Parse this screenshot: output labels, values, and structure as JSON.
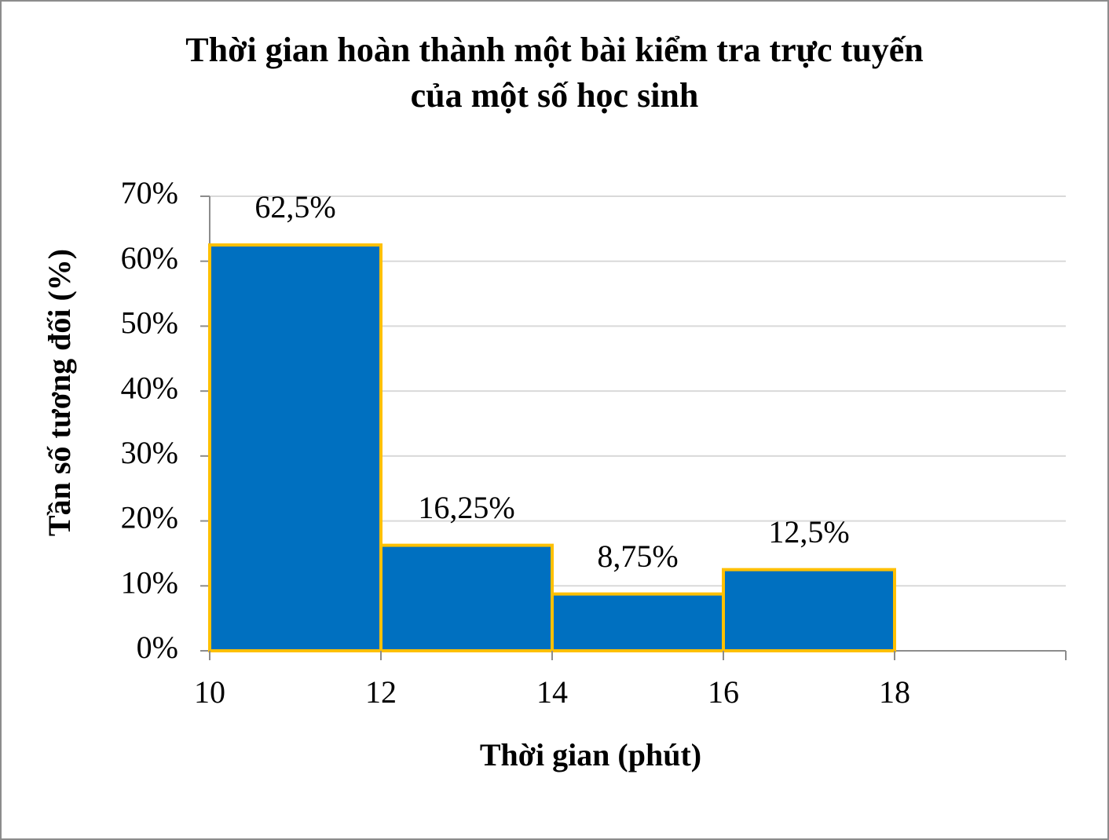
{
  "chart_data": {
    "type": "histogram",
    "title": [
      "Thời gian hoàn thành một bài kiểm tra trực tuyến",
      "của một số học sinh"
    ],
    "x_label": "Thời gian (phút)",
    "y_label": "Tần số tương đối (%)",
    "bins": [
      10,
      12,
      14,
      16,
      18
    ],
    "values": [
      62.5,
      16.25,
      8.75,
      12.5
    ],
    "value_labels": [
      "62,5%",
      "16,25%",
      "8,75%",
      "12,5%"
    ],
    "color": "#0070c0",
    "edge_color": "#ffc000",
    "xlim": [
      10,
      20
    ],
    "xticks": [
      10,
      12,
      14,
      16,
      18
    ],
    "ylim": [
      0,
      70
    ],
    "yticks": [
      {
        "value": 0,
        "label": "0%"
      },
      {
        "value": 10,
        "label": "10%"
      },
      {
        "value": 20,
        "label": "20%"
      },
      {
        "value": 30,
        "label": "30%"
      },
      {
        "value": 40,
        "label": "40%"
      },
      {
        "value": 50,
        "label": "50%"
      },
      {
        "value": 60,
        "label": "60%"
      },
      {
        "value": 70,
        "label": "70%"
      }
    ],
    "grid": true
  }
}
